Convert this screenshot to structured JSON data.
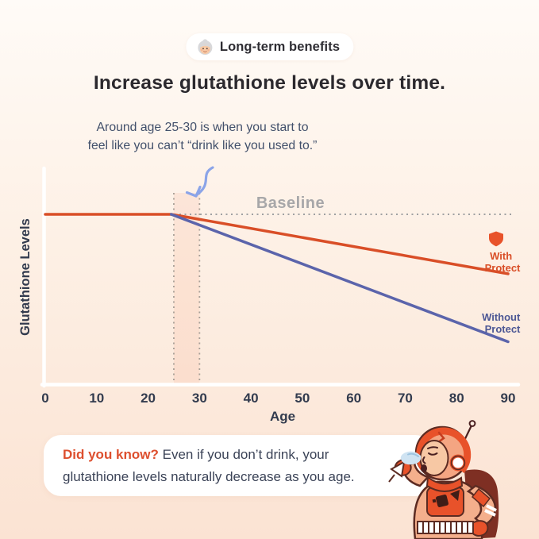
{
  "colors": {
    "accent_orange": "#E8522A",
    "line_orange": "#D94E27",
    "line_blue": "#5B64AB",
    "baseline_gray": "#A7A7A9",
    "title_dark": "#2B292E",
    "annotation_slate": "#42506B",
    "axis_navy": "#323B4E",
    "arrow_blue": "#8BA4E8",
    "card_bg": "#FFFFFF"
  },
  "badge": {
    "icon": "grandma-face",
    "label": "Long-term benefits"
  },
  "title": "Increase glutathione levels over time.",
  "annotation": {
    "line1": "Around age 25-30 is when you start to",
    "line2": "feel like you can’t “drink like you used to.”"
  },
  "chart_data": {
    "type": "line",
    "title": "",
    "xlabel": "Age",
    "ylabel": "Glutathione Levels",
    "x_ticks": [
      0,
      10,
      20,
      30,
      40,
      50,
      60,
      70,
      80,
      90
    ],
    "xlim": [
      0,
      92
    ],
    "ylim": [
      0,
      110
    ],
    "grid": false,
    "baseline": {
      "label": "Baseline",
      "value": 100
    },
    "highlight_band": {
      "x_start": 25,
      "x_end": 30
    },
    "legend_position": "end-of-lines",
    "series": [
      {
        "name": "With Protect",
        "label_lines": [
          "With",
          "Protect"
        ],
        "color": "#D94E27",
        "x": [
          0,
          24.5,
          90
        ],
        "y": [
          100,
          100,
          65
        ]
      },
      {
        "name": "Without Protect",
        "label_lines": [
          "Without",
          "Protect"
        ],
        "color": "#5B64AB",
        "x": [
          24.5,
          90
        ],
        "y": [
          100,
          25
        ]
      }
    ]
  },
  "did_you_know": {
    "highlight": "Did you know?",
    "rest_line1": " Even if you don’t drink, your",
    "line2": "glutathione levels naturally decrease as you age."
  },
  "illustration": "astronaut-exhaling-while-holding-drink"
}
